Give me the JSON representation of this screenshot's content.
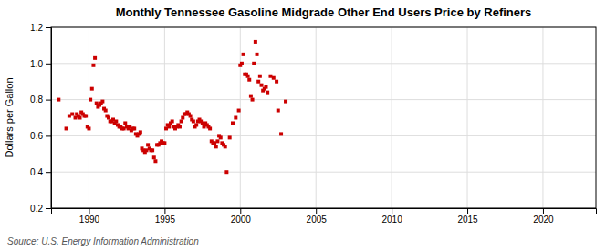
{
  "chart_data": {
    "type": "scatter",
    "title": "Monthly Tennessee Gasoline Midgrade Other End Users Price by Refiners",
    "y_label": "Dollars per Gallon",
    "source": "Source: U.S. Energy Information Administration",
    "color": "#cc0000",
    "marker": "square",
    "grid": true,
    "xlim": [
      1987.5,
      2023.5
    ],
    "ylim": [
      0.2,
      1.2
    ],
    "xticks": [
      1990,
      1995,
      2000,
      2005,
      2010,
      2015,
      2020
    ],
    "yticks": [
      0.2,
      0.4,
      0.6,
      0.8,
      {
        "value": 1.0,
        "label": "1.0"
      },
      1.2
    ],
    "x": [
      1988.0,
      1988.5,
      1988.7,
      1988.9,
      1989.1,
      1989.2,
      1989.3,
      1989.4,
      1989.5,
      1989.6,
      1989.7,
      1989.8,
      1989.9,
      1990.0,
      1990.1,
      1990.2,
      1990.3,
      1990.4,
      1990.5,
      1990.6,
      1990.7,
      1990.8,
      1990.9,
      1991.0,
      1991.1,
      1991.2,
      1991.3,
      1991.4,
      1991.5,
      1991.6,
      1991.7,
      1991.8,
      1991.9,
      1992.0,
      1992.1,
      1992.2,
      1992.3,
      1992.4,
      1992.5,
      1992.6,
      1992.7,
      1992.8,
      1992.9,
      1993.0,
      1993.1,
      1993.2,
      1993.3,
      1993.4,
      1993.5,
      1993.6,
      1993.7,
      1993.8,
      1993.9,
      1994.0,
      1994.1,
      1994.2,
      1994.3,
      1994.4,
      1994.5,
      1994.6,
      1994.7,
      1994.8,
      1994.9,
      1995.0,
      1995.1,
      1995.2,
      1995.3,
      1995.4,
      1995.5,
      1995.6,
      1995.7,
      1995.8,
      1995.9,
      1996.0,
      1996.1,
      1996.2,
      1996.3,
      1996.4,
      1996.5,
      1996.6,
      1996.7,
      1996.8,
      1996.9,
      1997.0,
      1997.1,
      1997.2,
      1997.3,
      1997.4,
      1997.5,
      1997.6,
      1997.7,
      1997.8,
      1997.9,
      1998.0,
      1998.1,
      1998.2,
      1998.3,
      1998.4,
      1998.5,
      1998.6,
      1998.7,
      1998.8,
      1998.9,
      1999.0,
      1999.1,
      1999.3,
      1999.5,
      1999.7,
      1999.9,
      2000.0,
      2000.1,
      2000.2,
      2000.3,
      2000.4,
      2000.5,
      2000.6,
      2000.7,
      2000.8,
      2000.9,
      2001.0,
      2001.1,
      2001.2,
      2001.3,
      2001.4,
      2001.5,
      2001.6,
      2001.7,
      2001.8,
      2002.0,
      2002.2,
      2002.4,
      2002.5,
      2002.7,
      2003.0
    ],
    "values": [
      0.8,
      0.64,
      0.71,
      0.72,
      0.7,
      0.72,
      0.71,
      0.7,
      0.73,
      0.72,
      0.71,
      0.71,
      0.65,
      0.64,
      0.8,
      0.86,
      0.99,
      1.03,
      0.78,
      0.76,
      0.77,
      0.78,
      0.79,
      0.75,
      0.74,
      0.71,
      0.7,
      0.68,
      0.68,
      0.69,
      0.67,
      0.68,
      0.66,
      0.65,
      0.65,
      0.64,
      0.64,
      0.67,
      0.65,
      0.64,
      0.65,
      0.63,
      0.64,
      0.64,
      0.61,
      0.6,
      0.61,
      0.62,
      0.53,
      0.52,
      0.51,
      0.52,
      0.55,
      0.53,
      0.52,
      0.52,
      0.48,
      0.46,
      0.55,
      0.55,
      0.56,
      0.57,
      0.56,
      0.56,
      0.64,
      0.66,
      0.65,
      0.67,
      0.68,
      0.65,
      0.64,
      0.65,
      0.66,
      0.65,
      0.68,
      0.7,
      0.72,
      0.72,
      0.73,
      0.72,
      0.71,
      0.69,
      0.68,
      0.65,
      0.66,
      0.68,
      0.69,
      0.68,
      0.67,
      0.65,
      0.67,
      0.66,
      0.65,
      0.64,
      0.57,
      0.56,
      0.56,
      0.54,
      0.57,
      0.6,
      0.59,
      0.56,
      0.55,
      0.54,
      0.4,
      0.59,
      0.67,
      0.7,
      0.74,
      0.99,
      1.0,
      1.05,
      0.94,
      0.94,
      0.93,
      0.91,
      0.82,
      0.8,
      1.0,
      1.12,
      1.05,
      0.9,
      0.93,
      0.88,
      0.85,
      0.86,
      0.87,
      0.84,
      0.93,
      0.92,
      0.9,
      0.74,
      0.61,
      0.79
    ]
  }
}
